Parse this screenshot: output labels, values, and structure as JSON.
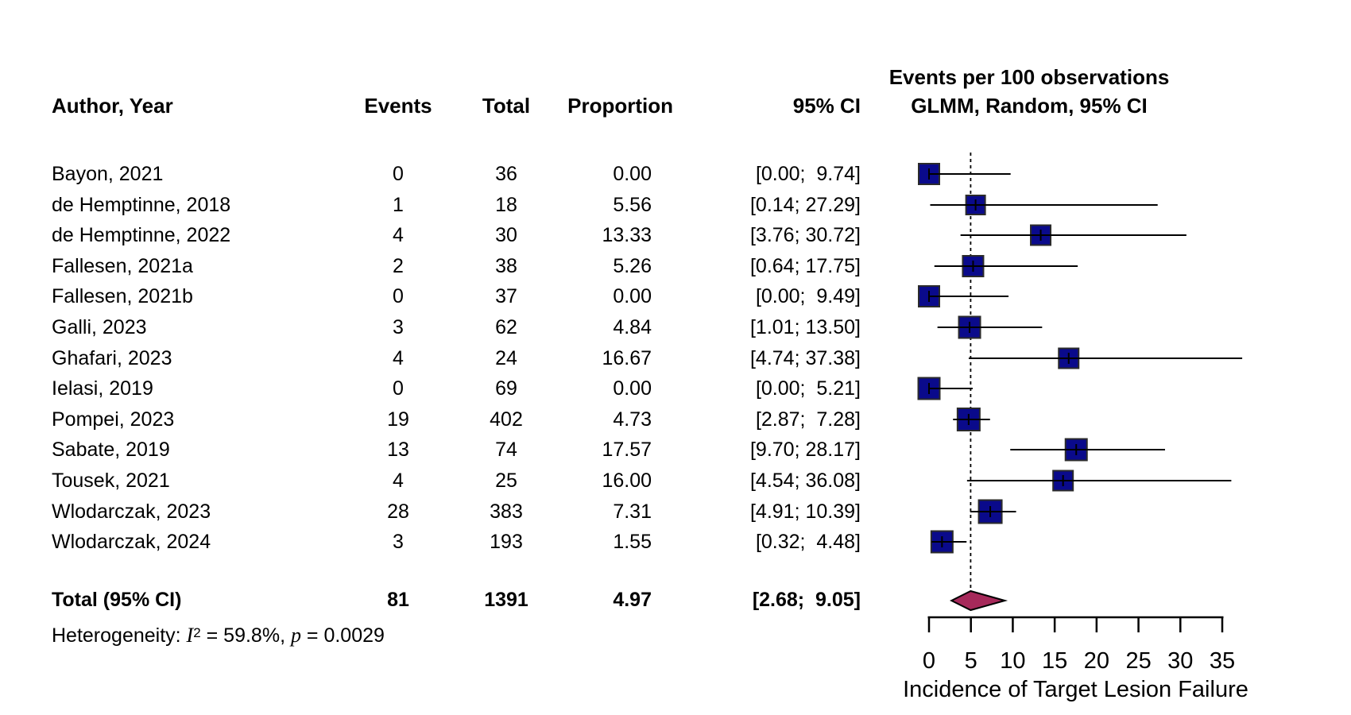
{
  "chart_data": {
    "type": "forest",
    "table_headers": {
      "author": "Author, Year",
      "events": "Events",
      "total": "Total",
      "proportion": "Proportion",
      "ci": "95% CI"
    },
    "effect_title_line1": "Events per 100 observations",
    "effect_title_line2": "GLMM, Random, 95% CI",
    "studies": [
      {
        "author": "Bayon, 2021",
        "events": "0",
        "total": "36",
        "proportion": "0.00",
        "ci_text": "[0.00;  9.74]",
        "est": 0.0,
        "lo": 0.0,
        "hi": 9.74,
        "size": 26
      },
      {
        "author": "de Hemptinne, 2018",
        "events": "1",
        "total": "18",
        "proportion": "5.56",
        "ci_text": "[0.14; 27.29]",
        "est": 5.56,
        "lo": 0.14,
        "hi": 27.29,
        "size": 24
      },
      {
        "author": "de Hemptinne, 2022",
        "events": "4",
        "total": "30",
        "proportion": "13.33",
        "ci_text": "[3.76; 30.72]",
        "est": 13.33,
        "lo": 3.76,
        "hi": 30.72,
        "size": 25
      },
      {
        "author": "Fallesen, 2021a",
        "events": "2",
        "total": "38",
        "proportion": "5.26",
        "ci_text": "[0.64; 17.75]",
        "est": 5.26,
        "lo": 0.64,
        "hi": 17.75,
        "size": 26
      },
      {
        "author": "Fallesen, 2021b",
        "events": "0",
        "total": "37",
        "proportion": "0.00",
        "ci_text": "[0.00;  9.49]",
        "est": 0.0,
        "lo": 0.0,
        "hi": 9.49,
        "size": 26
      },
      {
        "author": "Galli, 2023",
        "events": "3",
        "total": "62",
        "proportion": "4.84",
        "ci_text": "[1.01; 13.50]",
        "est": 4.84,
        "lo": 1.01,
        "hi": 13.5,
        "size": 27
      },
      {
        "author": "Ghafari, 2023",
        "events": "4",
        "total": "24",
        "proportion": "16.67",
        "ci_text": "[4.74; 37.38]",
        "est": 16.67,
        "lo": 4.74,
        "hi": 37.38,
        "size": 25
      },
      {
        "author": "Ielasi, 2019",
        "events": "0",
        "total": "69",
        "proportion": "0.00",
        "ci_text": "[0.00;  5.21]",
        "est": 0.0,
        "lo": 0.0,
        "hi": 5.21,
        "size": 27
      },
      {
        "author": "Pompei, 2023",
        "events": "19",
        "total": "402",
        "proportion": "4.73",
        "ci_text": "[2.87;  7.28]",
        "est": 4.73,
        "lo": 2.87,
        "hi": 7.28,
        "size": 28
      },
      {
        "author": "Sabate, 2019",
        "events": "13",
        "total": "74",
        "proportion": "17.57",
        "ci_text": "[9.70; 28.17]",
        "est": 17.57,
        "lo": 9.7,
        "hi": 28.17,
        "size": 27
      },
      {
        "author": "Tousek, 2021",
        "events": "4",
        "total": "25",
        "proportion": "16.00",
        "ci_text": "[4.54; 36.08]",
        "est": 16.0,
        "lo": 4.54,
        "hi": 36.08,
        "size": 25
      },
      {
        "author": "Wlodarczak, 2023",
        "events": "28",
        "total": "383",
        "proportion": "7.31",
        "ci_text": "[4.91; 10.39]",
        "est": 7.31,
        "lo": 4.91,
        "hi": 10.39,
        "size": 29
      },
      {
        "author": "Wlodarczak, 2024",
        "events": "3",
        "total": "193",
        "proportion": "1.55",
        "ci_text": "[0.32;  4.48]",
        "est": 1.55,
        "lo": 0.32,
        "hi": 4.48,
        "size": 27
      }
    ],
    "pooled": {
      "label": "Total (95% CI)",
      "events": "81",
      "total": "1391",
      "proportion": "4.97",
      "ci_text": "[2.68;  9.05]",
      "est": 4.97,
      "lo": 2.68,
      "hi": 9.05
    },
    "heterogeneity": {
      "prefix": "Heterogeneity: ",
      "i_symbol": "I",
      "i_sup": "2",
      "mid": " = 59.8%, ",
      "p_symbol": "p",
      "end": " = 0.0029"
    },
    "xaxis": {
      "min": 0,
      "max": 35,
      "ticks": [
        0,
        5,
        10,
        15,
        20,
        25,
        30,
        35
      ],
      "label": "Incidence of Target Lesion Failure"
    },
    "reference_line_at": 4.97,
    "colors": {
      "square": "#0a0a8b",
      "square_border": "#2b2b2b",
      "diamond": "#a6295a",
      "line": "#000000"
    }
  }
}
